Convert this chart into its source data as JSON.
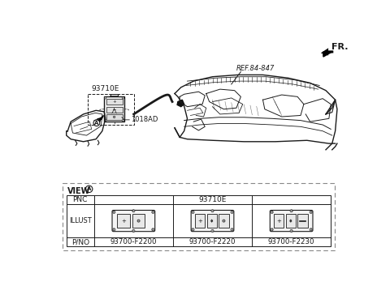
{
  "bg_color": "#ffffff",
  "fr_label": "FR.",
  "ref_label": "REF.84-847",
  "label_93710E": "93710E",
  "label_1018AD": "1018AD",
  "view_label": "VIEW",
  "table_pnc": "93710E",
  "pnc_label": "PNC",
  "illust_label": "ILLUST",
  "pno_label": "P/NO",
  "pno_values": [
    "93700-F2200",
    "93700-F2220",
    "93700-F2230"
  ],
  "line_color": "#1a1a1a",
  "dash_color": "#888888"
}
